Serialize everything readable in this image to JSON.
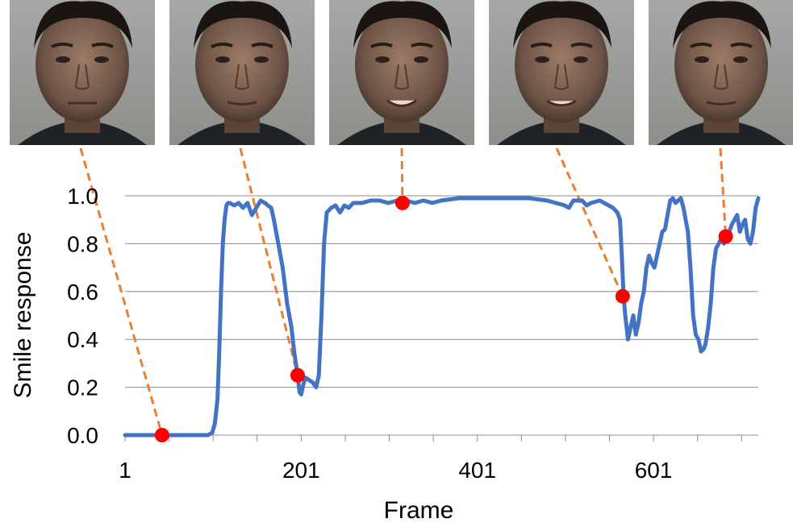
{
  "chart_data": {
    "type": "line",
    "xlabel": "Frame",
    "ylabel": "Smile response",
    "xlim": [
      1,
      720
    ],
    "ylim": [
      0,
      1
    ],
    "x_ticks": [
      1,
      201,
      401,
      601
    ],
    "y_ticks": [
      "0.0",
      "0.2",
      "0.4",
      "0.6",
      "0.8",
      "1.0"
    ],
    "grid": "horizontal",
    "colors": {
      "line": "#4472C4",
      "marker": "#FF0000",
      "leader": "#ED7D31"
    },
    "series": [
      {
        "x": [
          1,
          40,
          80,
          95,
          100,
          103,
          106,
          108,
          110,
          112,
          114,
          116,
          118,
          120,
          125,
          130,
          135,
          140,
          145,
          150,
          155,
          160,
          163,
          167,
          170,
          175,
          180,
          185,
          190,
          193,
          197,
          199,
          201,
          204,
          206,
          210,
          214,
          218,
          221,
          224,
          227,
          230,
          235,
          240,
          245,
          250,
          255,
          260,
          270,
          280,
          290,
          300,
          310,
          320,
          330,
          340,
          350,
          360,
          380,
          400,
          420,
          440,
          460,
          480,
          490,
          500,
          505,
          510,
          520,
          525,
          530,
          540,
          545,
          550,
          555,
          560,
          563,
          565,
          567,
          569,
          572,
          575,
          578,
          581,
          584,
          587,
          590,
          593,
          596,
          599,
          602,
          605,
          608,
          611,
          614,
          617,
          620,
          623,
          626,
          629,
          632,
          635,
          640,
          643,
          646,
          649,
          652,
          655,
          658,
          660,
          663,
          666,
          669,
          672,
          675,
          678,
          681,
          684,
          687,
          690,
          693,
          696,
          699,
          702,
          705,
          708,
          711,
          714,
          717,
          720
        ],
        "values": [
          0.0,
          0.0,
          0.0,
          0.0,
          0.01,
          0.05,
          0.15,
          0.35,
          0.6,
          0.8,
          0.9,
          0.96,
          0.97,
          0.97,
          0.96,
          0.97,
          0.95,
          0.97,
          0.92,
          0.95,
          0.98,
          0.97,
          0.96,
          0.95,
          0.9,
          0.8,
          0.7,
          0.55,
          0.45,
          0.35,
          0.25,
          0.18,
          0.17,
          0.22,
          0.24,
          0.23,
          0.22,
          0.2,
          0.25,
          0.5,
          0.8,
          0.93,
          0.95,
          0.96,
          0.93,
          0.96,
          0.95,
          0.97,
          0.97,
          0.98,
          0.98,
          0.97,
          0.98,
          0.98,
          0.97,
          0.98,
          0.97,
          0.98,
          0.99,
          0.99,
          0.99,
          0.99,
          0.99,
          0.98,
          0.97,
          0.96,
          0.95,
          0.98,
          0.98,
          0.96,
          0.97,
          0.98,
          0.97,
          0.96,
          0.95,
          0.93,
          0.9,
          0.75,
          0.58,
          0.5,
          0.4,
          0.45,
          0.5,
          0.42,
          0.47,
          0.55,
          0.6,
          0.7,
          0.75,
          0.72,
          0.7,
          0.75,
          0.8,
          0.85,
          0.86,
          0.92,
          0.98,
          0.99,
          0.97,
          0.98,
          0.99,
          0.95,
          0.85,
          0.7,
          0.5,
          0.42,
          0.4,
          0.35,
          0.36,
          0.38,
          0.45,
          0.55,
          0.7,
          0.78,
          0.8,
          0.82,
          0.8,
          0.83,
          0.85,
          0.88,
          0.9,
          0.92,
          0.85,
          0.88,
          0.9,
          0.82,
          0.8,
          0.85,
          0.95,
          0.99
        ]
      }
    ],
    "highlighted_points": [
      {
        "x": 43,
        "y": 0.0
      },
      {
        "x": 197,
        "y": 0.25
      },
      {
        "x": 316,
        "y": 0.97
      },
      {
        "x": 566,
        "y": 0.58
      },
      {
        "x": 683,
        "y": 0.83
      }
    ],
    "face_thumbnails": [
      "neutral",
      "slight-smile",
      "broad-smile",
      "smile",
      "slight-smile"
    ]
  }
}
